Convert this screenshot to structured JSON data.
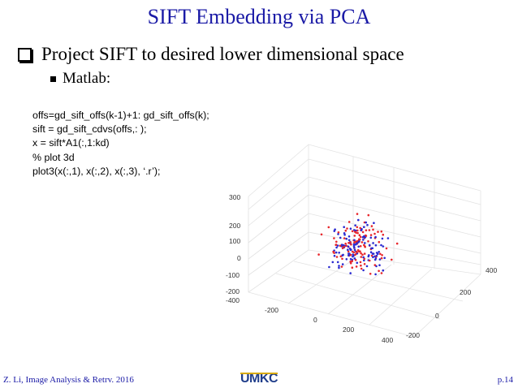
{
  "slide": {
    "title": "SIFT Embedding via PCA",
    "bullet1": "Project SIFT to desired lower dimensional space",
    "bullet2": "Matlab:",
    "code_lines": [
      "offs=gd_sift_offs(k-1)+1: gd_sift_offs(k);",
      "sift = gd_sift_cdvs(offs,: );",
      "x = sift*A1(:,1:kd)",
      "% plot 3d",
      "plot3(x(:,1), x(:,2), x(:,3), ‘.r’);"
    ],
    "footer_left": "Z. Li, Image Analysis & Retrv. 2016",
    "footer_right": "p.14",
    "logo_text": "UMKC"
  },
  "colors": {
    "title": "#1a1aa6",
    "series_red": "#e8262b",
    "series_blue": "#2a2ad1",
    "logo_gold": "#d7a900",
    "logo_blue": "#1f3d8a"
  },
  "chart_data": {
    "type": "scatter",
    "dimensions": 3,
    "grid": true,
    "z_ticks": [
      "300",
      "200",
      "100",
      "0",
      "-100",
      "-200"
    ],
    "x_ticks": [
      "-400",
      "-200",
      "0",
      "200",
      "400"
    ],
    "y_ticks": [
      "-200",
      "0",
      "200",
      "400"
    ],
    "series": [
      {
        "color": "#e8262b"
      },
      {
        "color": "#2a2ad1"
      }
    ]
  }
}
